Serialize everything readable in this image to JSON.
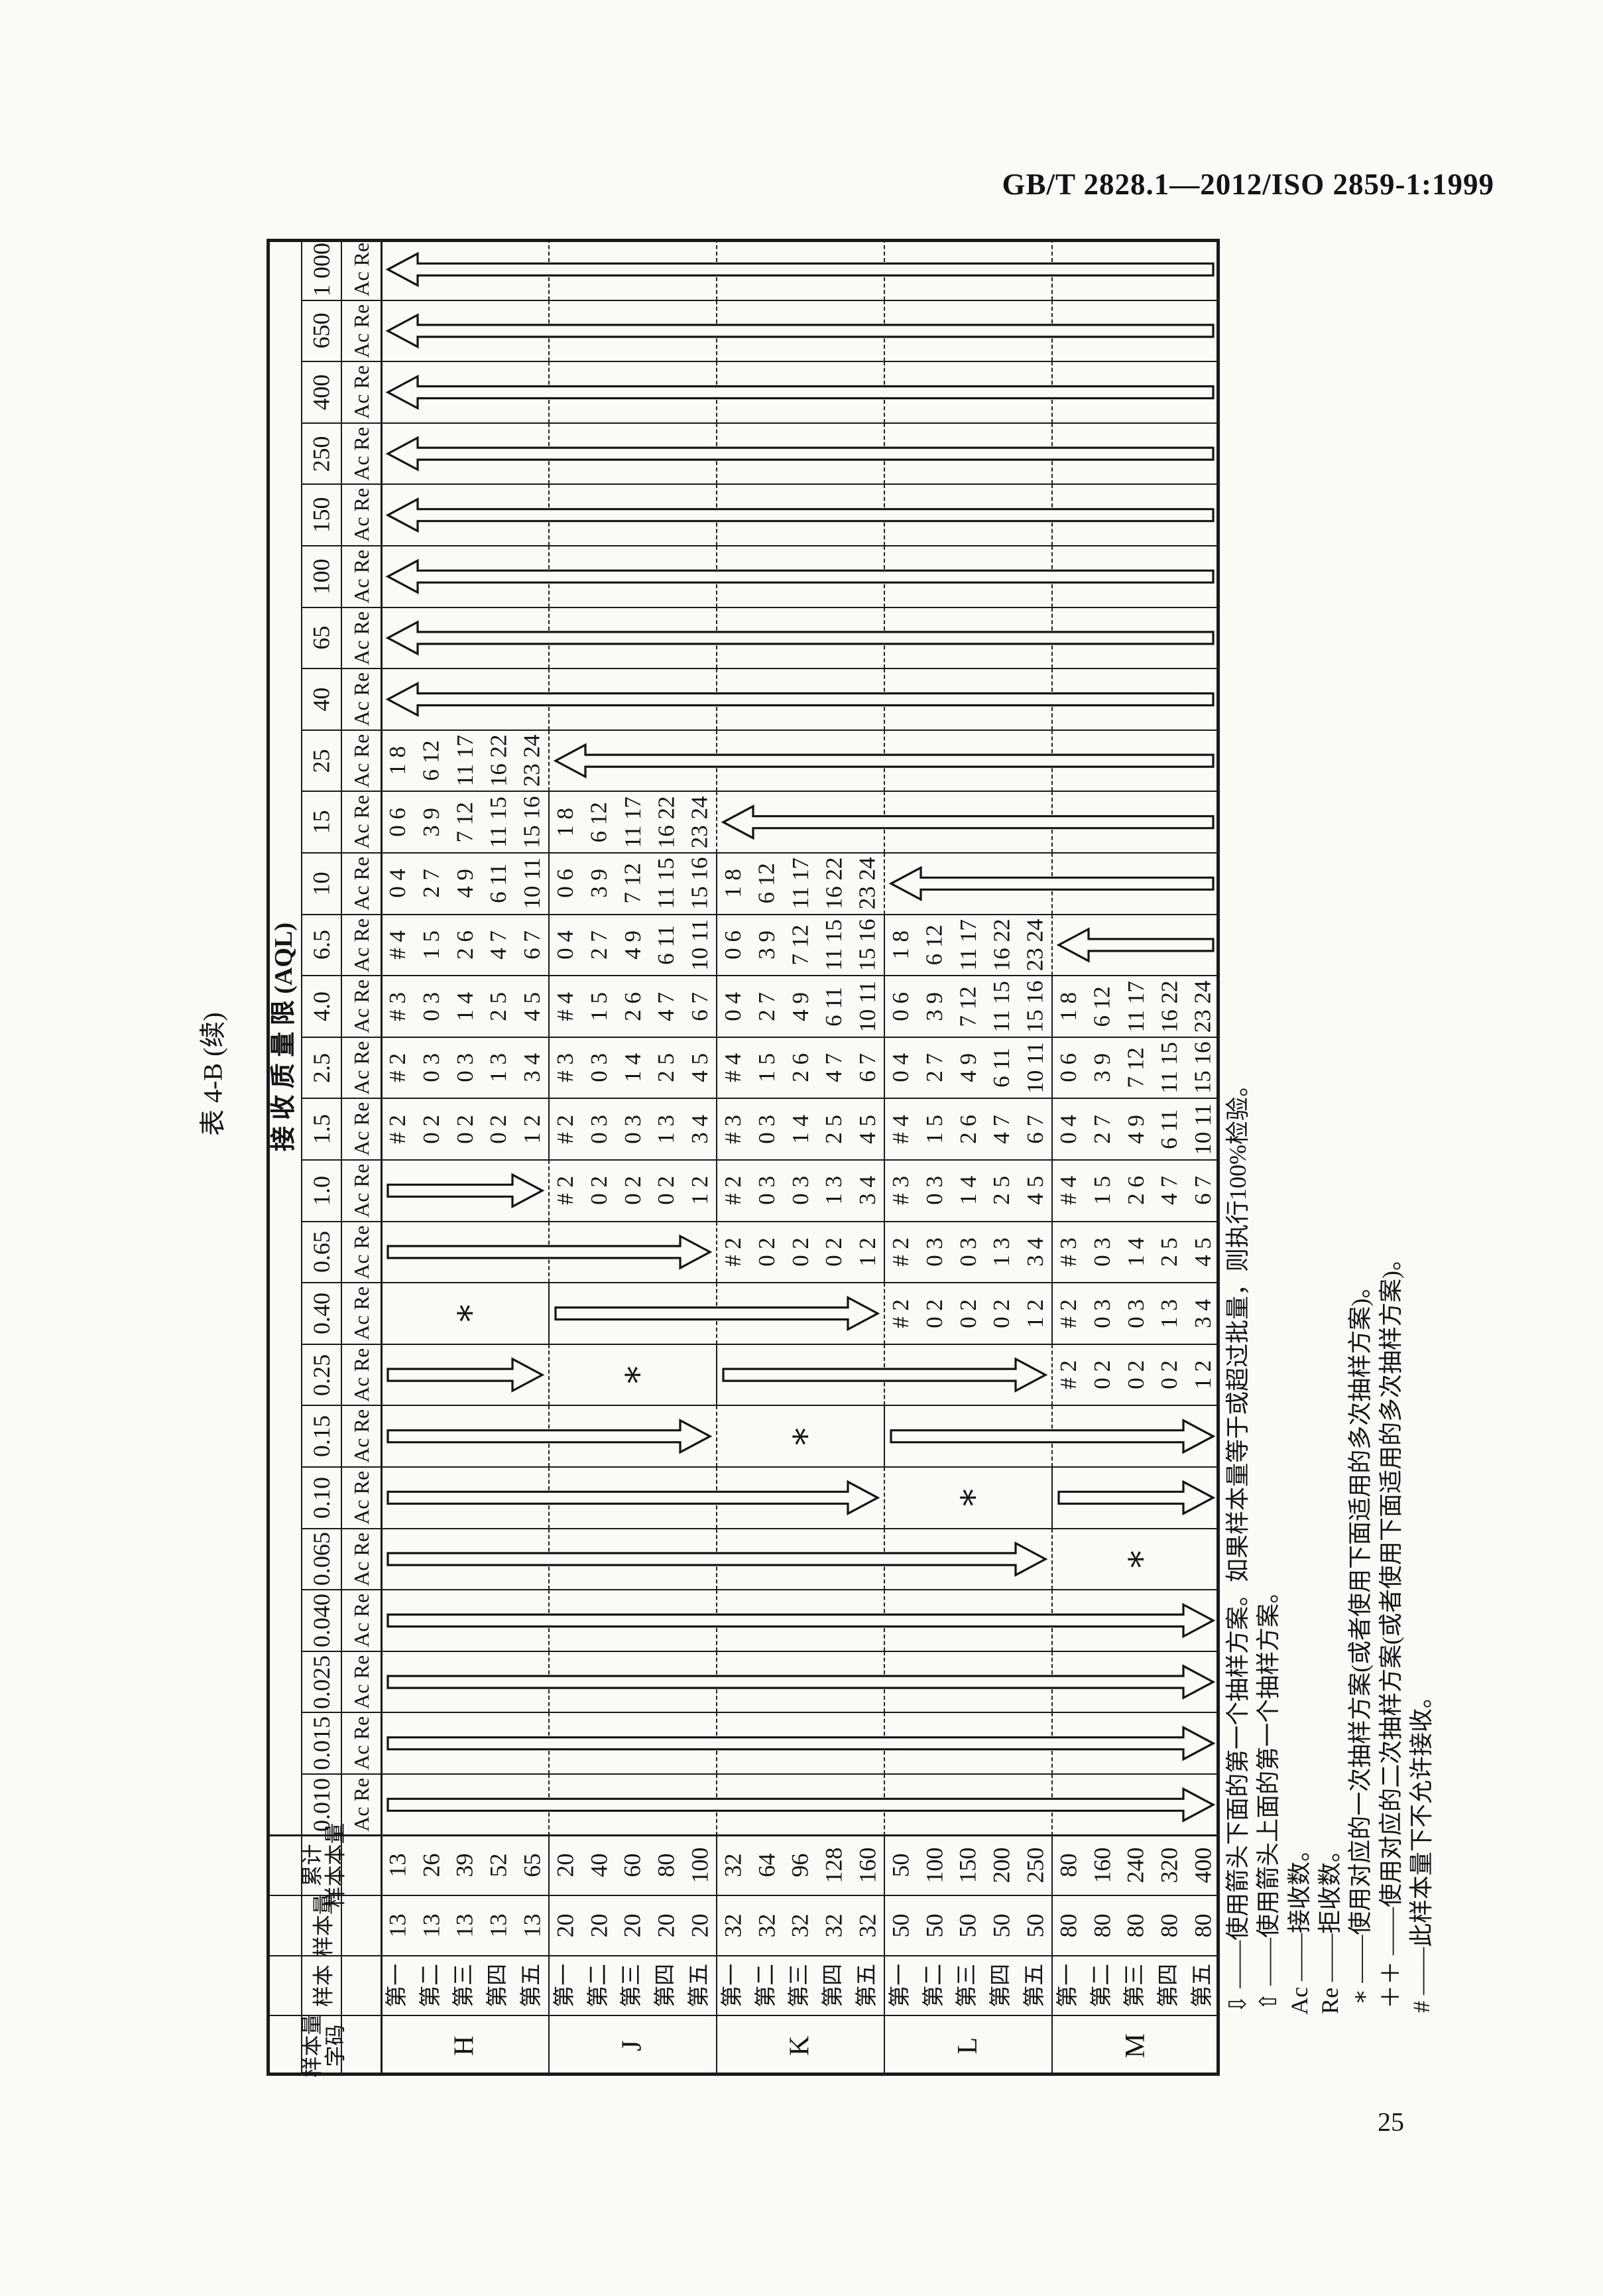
{
  "page": {
    "doc_code": "GB/T 2828.1—2012/ISO 2859-1:1999",
    "page_number": "25",
    "table_title": "表 4-B (续)"
  },
  "table": {
    "aql_header": "接 收 质 量 限 (AQL)",
    "corner_headers": {
      "code": [
        "样本量",
        "字码"
      ],
      "sample": [
        "样本"
      ],
      "size": [
        "样本量"
      ],
      "cum": [
        "累计",
        "样本本量"
      ]
    },
    "ac_re_label": "Ac Re",
    "aql_columns": [
      "0.010",
      "0.015",
      "0.025",
      "0.040",
      "0.065",
      "0.10",
      "0.15",
      "0.25",
      "0.40",
      "0.65",
      "1.0",
      "1.5",
      "2.5",
      "4.0",
      "6.5",
      "10",
      "15",
      "25",
      "40",
      "65",
      "100",
      "150",
      "250",
      "400",
      "650",
      "1 000"
    ],
    "sample_stages": [
      "第一",
      "第二",
      "第三",
      "第四",
      "第五"
    ],
    "blocks": [
      {
        "code": "H",
        "sizes": [
          "13",
          "13",
          "13",
          "13",
          "13"
        ],
        "cum": [
          "13",
          "26",
          "39",
          "52",
          "65"
        ]
      },
      {
        "code": "J",
        "sizes": [
          "20",
          "20",
          "20",
          "20",
          "20"
        ],
        "cum": [
          "20",
          "40",
          "60",
          "80",
          "100"
        ]
      },
      {
        "code": "K",
        "sizes": [
          "32",
          "32",
          "32",
          "32",
          "32"
        ],
        "cum": [
          "32",
          "64",
          "96",
          "128",
          "160"
        ]
      },
      {
        "code": "L",
        "sizes": [
          "50",
          "50",
          "50",
          "50",
          "50"
        ],
        "cum": [
          "50",
          "100",
          "150",
          "200",
          "250"
        ]
      },
      {
        "code": "M",
        "sizes": [
          "80",
          "80",
          "80",
          "80",
          "80"
        ],
        "cum": [
          "80",
          "160",
          "240",
          "320",
          "400"
        ]
      }
    ],
    "plans": {
      "C1": [
        "# 2",
        "0 2",
        "0 2",
        "0 2",
        "1 2"
      ],
      "C2": [
        "# 2",
        "0 3",
        "0 3",
        "1 3",
        "3 4"
      ],
      "C3": [
        "# 3",
        "0 3",
        "1 4",
        "2 5",
        "4 5"
      ],
      "C4": [
        "# 4",
        "1 5",
        "2 6",
        "4 7",
        "6 7"
      ],
      "C5": [
        "0 4",
        "2 7",
        "4 9",
        "6 11",
        "10 11"
      ],
      "C6": [
        "0 6",
        "3 9",
        "7 12",
        "11 15",
        "15 16"
      ],
      "C7": [
        "1 8",
        "6 12",
        "11 17",
        "16 22",
        "23 24"
      ]
    },
    "plan_placement": {
      "H": {
        "1.5": "C1",
        "2.5": "C2",
        "4.0": "C3",
        "6.5": "C4",
        "10": "C5",
        "15": "C6",
        "25": "C7"
      },
      "J": {
        "1.0": "C1",
        "1.5": "C2",
        "2.5": "C3",
        "4.0": "C4",
        "6.5": "C5",
        "10": "C6",
        "15": "C7"
      },
      "K": {
        "0.65": "C1",
        "1.0": "C2",
        "1.5": "C3",
        "2.5": "C4",
        "4.0": "C5",
        "6.5": "C6",
        "10": "C7"
      },
      "L": {
        "0.40": "C1",
        "0.65": "C2",
        "1.0": "C3",
        "1.5": "C4",
        "2.5": "C5",
        "4.0": "C6",
        "6.5": "C7"
      },
      "M": {
        "0.25": "C1",
        "0.40": "C2",
        "0.65": "C3",
        "1.0": "C4",
        "1.5": "C5",
        "2.5": "C6",
        "4.0": "C7"
      }
    },
    "asterisk_symbol": "∗",
    "asterisk_cells": {
      "H": "0.40",
      "J": "0.25",
      "K": "0.15",
      "L": "0.10",
      "M": "0.065"
    },
    "arrows": [
      {
        "aql": "1 000",
        "dir": "up",
        "rows": [
          0,
          24
        ]
      },
      {
        "aql": "650",
        "dir": "up",
        "rows": [
          0,
          24
        ]
      },
      {
        "aql": "400",
        "dir": "up",
        "rows": [
          0,
          24
        ]
      },
      {
        "aql": "250",
        "dir": "up",
        "rows": [
          0,
          24
        ]
      },
      {
        "aql": "150",
        "dir": "up",
        "rows": [
          0,
          24
        ]
      },
      {
        "aql": "100",
        "dir": "up",
        "rows": [
          0,
          24
        ]
      },
      {
        "aql": "65",
        "dir": "up",
        "rows": [
          0,
          24
        ]
      },
      {
        "aql": "40",
        "dir": "up",
        "rows": [
          0,
          24
        ]
      },
      {
        "aql": "25",
        "dir": "up",
        "rows": [
          5,
          24
        ]
      },
      {
        "aql": "15",
        "dir": "up",
        "rows": [
          10,
          24
        ]
      },
      {
        "aql": "10",
        "dir": "up",
        "rows": [
          15,
          24
        ]
      },
      {
        "aql": "6.5",
        "dir": "up",
        "rows": [
          20,
          24
        ]
      },
      {
        "aql": "1.0",
        "dir": "down",
        "rows": [
          0,
          4
        ]
      },
      {
        "aql": "0.65",
        "dir": "down",
        "rows": [
          0,
          9
        ]
      },
      {
        "aql": "0.40",
        "dir": "down",
        "rows": [
          5,
          14
        ]
      },
      {
        "aql": "0.25",
        "dir": "down",
        "rows": [
          0,
          4
        ]
      },
      {
        "aql": "0.25",
        "dir": "down",
        "rows": [
          10,
          19
        ]
      },
      {
        "aql": "0.15",
        "dir": "down",
        "rows": [
          0,
          9
        ]
      },
      {
        "aql": "0.15",
        "dir": "down",
        "rows": [
          15,
          24
        ]
      },
      {
        "aql": "0.10",
        "dir": "down",
        "rows": [
          0,
          14
        ]
      },
      {
        "aql": "0.10",
        "dir": "down",
        "rows": [
          20,
          24
        ]
      },
      {
        "aql": "0.065",
        "dir": "down",
        "rows": [
          0,
          19
        ]
      },
      {
        "aql": "0.040",
        "dir": "down",
        "rows": [
          0,
          24
        ]
      },
      {
        "aql": "0.025",
        "dir": "down",
        "rows": [
          0,
          24
        ]
      },
      {
        "aql": "0.015",
        "dir": "down",
        "rows": [
          0,
          24
        ]
      },
      {
        "aql": "0.010",
        "dir": "down",
        "rows": [
          0,
          24
        ]
      }
    ],
    "footnotes": [
      {
        "symbol": "⇩",
        "text": "——使用箭头下面的第一个抽样方案。如果样本量等于或超过批量，则执行100%检验。"
      },
      {
        "symbol": "⇧",
        "text": "——使用箭头上面的第一个抽样方案。"
      },
      {
        "symbol": "Ac",
        "text": "——接收数。"
      },
      {
        "symbol": "Re",
        "text": "——拒收数。"
      },
      {
        "symbol": "∗",
        "text": "——使用对应的一次抽样方案(或者使用下面适用的多次抽样方案)。"
      },
      {
        "symbol": "＋＋",
        "text": "——使用对应的二次抽样方案(或者使用下面适用的多次抽样方案)。"
      },
      {
        "symbol": "#",
        "text": "——此样本量下不允许接收。"
      }
    ]
  }
}
